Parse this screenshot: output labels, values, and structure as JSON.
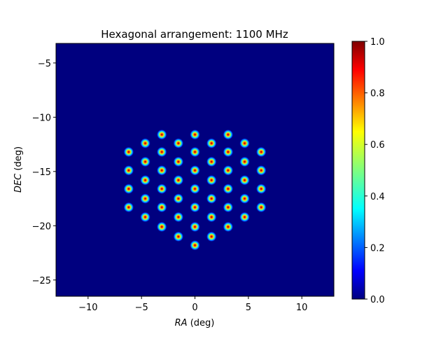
{
  "chart_data": {
    "type": "heatmap",
    "title": "Hexagonal arrangement: 1100 MHz",
    "xlabel_var": "RA",
    "xlabel_unit": " (deg)",
    "ylabel_var": "DEC",
    "ylabel_unit": " (deg)",
    "xlim": [
      -13,
      13
    ],
    "ylim": [
      -26.5,
      -3.2
    ],
    "xticks": [
      -10,
      -5,
      0,
      5,
      10
    ],
    "xtick_labels": [
      "−10",
      "−5",
      "0",
      "5",
      "10"
    ],
    "yticks": [
      -5,
      -10,
      -15,
      -20,
      -25
    ],
    "ytick_labels": [
      "−5",
      "−10",
      "−15",
      "−20",
      "−25"
    ],
    "colorbar": {
      "colormap": "jet",
      "range": [
        0.0,
        1.0
      ],
      "ticks": [
        0.0,
        0.2,
        0.4,
        0.6,
        0.8,
        1.0
      ],
      "tick_labels": [
        "0.0",
        "0.2",
        "0.4",
        "0.6",
        "0.8",
        "1.0"
      ]
    },
    "background_color": "#00007f",
    "beam_centers": [
      {
        "ra": 0.0,
        "dec": -11.6
      },
      {
        "ra": -3.1,
        "dec": -11.6
      },
      {
        "ra": 3.1,
        "dec": -11.6
      },
      {
        "ra": -4.65,
        "dec": -12.4
      },
      {
        "ra": -1.55,
        "dec": -12.4
      },
      {
        "ra": 1.55,
        "dec": -12.4
      },
      {
        "ra": 4.65,
        "dec": -12.4
      },
      {
        "ra": -6.2,
        "dec": -13.2
      },
      {
        "ra": -3.1,
        "dec": -13.2
      },
      {
        "ra": 0.0,
        "dec": -13.2
      },
      {
        "ra": 3.1,
        "dec": -13.2
      },
      {
        "ra": 6.2,
        "dec": -13.2
      },
      {
        "ra": -4.65,
        "dec": -14.1
      },
      {
        "ra": -1.55,
        "dec": -14.1
      },
      {
        "ra": 1.55,
        "dec": -14.1
      },
      {
        "ra": 4.65,
        "dec": -14.1
      },
      {
        "ra": -6.2,
        "dec": -14.9
      },
      {
        "ra": -3.1,
        "dec": -14.9
      },
      {
        "ra": 0.0,
        "dec": -14.9
      },
      {
        "ra": 3.1,
        "dec": -14.9
      },
      {
        "ra": 6.2,
        "dec": -14.9
      },
      {
        "ra": -4.65,
        "dec": -15.8
      },
      {
        "ra": -1.55,
        "dec": -15.8
      },
      {
        "ra": 1.55,
        "dec": -15.8
      },
      {
        "ra": 4.65,
        "dec": -15.8
      },
      {
        "ra": -6.2,
        "dec": -16.6
      },
      {
        "ra": -3.1,
        "dec": -16.6
      },
      {
        "ra": 0.0,
        "dec": -16.6
      },
      {
        "ra": 3.1,
        "dec": -16.6
      },
      {
        "ra": 6.2,
        "dec": -16.6
      },
      {
        "ra": -4.65,
        "dec": -17.5
      },
      {
        "ra": -1.55,
        "dec": -17.5
      },
      {
        "ra": 1.55,
        "dec": -17.5
      },
      {
        "ra": 4.65,
        "dec": -17.5
      },
      {
        "ra": -6.2,
        "dec": -18.3
      },
      {
        "ra": -3.1,
        "dec": -18.3
      },
      {
        "ra": 0.0,
        "dec": -18.3
      },
      {
        "ra": 3.1,
        "dec": -18.3
      },
      {
        "ra": 6.2,
        "dec": -18.3
      },
      {
        "ra": -4.65,
        "dec": -19.2
      },
      {
        "ra": -1.55,
        "dec": -19.2
      },
      {
        "ra": 1.55,
        "dec": -19.2
      },
      {
        "ra": 4.65,
        "dec": -19.2
      },
      {
        "ra": -3.1,
        "dec": -20.1
      },
      {
        "ra": 0.0,
        "dec": -20.1
      },
      {
        "ra": 3.1,
        "dec": -20.1
      },
      {
        "ra": -1.55,
        "dec": -21.0
      },
      {
        "ra": 1.55,
        "dec": -21.0
      },
      {
        "ra": 0.0,
        "dec": -21.8
      }
    ]
  }
}
